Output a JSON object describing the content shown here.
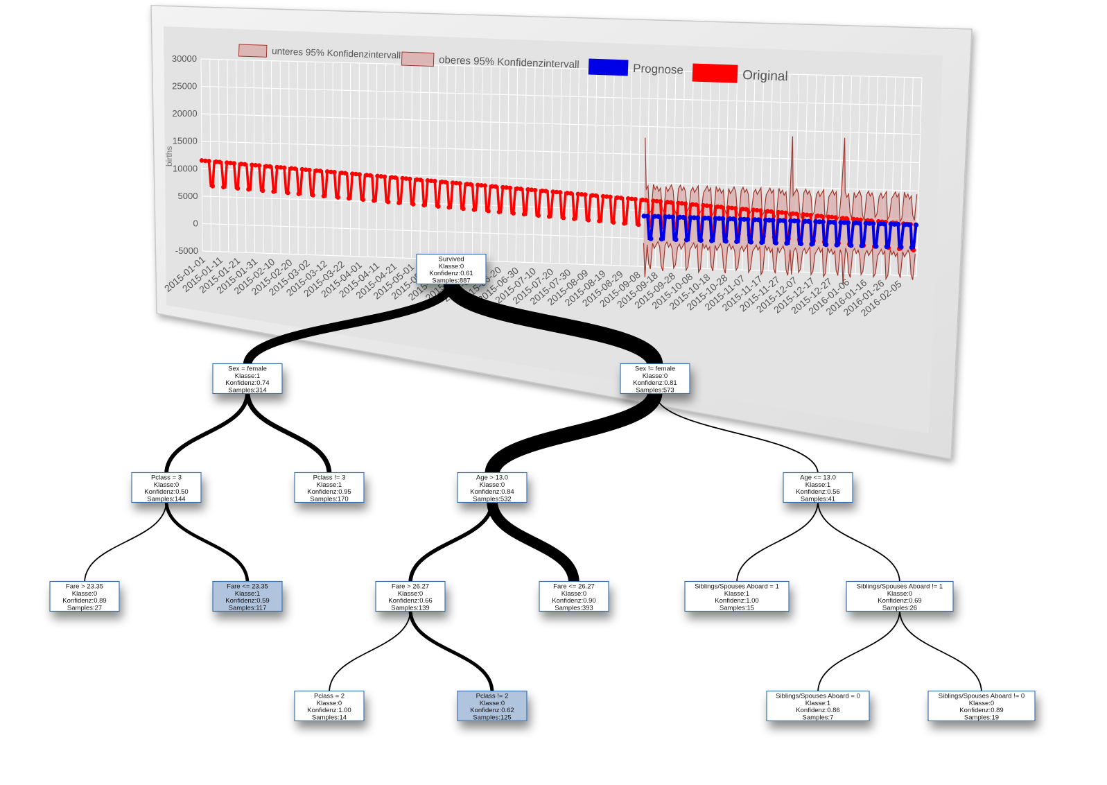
{
  "colors": {
    "original": "#ff0000",
    "forecast": "#0000e6",
    "interval_fill": "#d9a6a6",
    "interval_stroke": "#a0362c",
    "node_fill": "#ffffff",
    "node_highlight": "#b0c4de",
    "node_border": "#3b73b0",
    "edge": "#000000"
  },
  "chart_data": {
    "type": "line",
    "ylabel": "births",
    "xlabel": "",
    "ylim": [
      -5000,
      30000
    ],
    "y_ticks": [
      "30000",
      "25000",
      "20000",
      "15000",
      "10000",
      "5000",
      "0",
      "-5000"
    ],
    "x_ticks": [
      "2015-01-01",
      "2015-01-11",
      "2015-01-21",
      "2015-01-31",
      "2015-02-10",
      "2015-02-20",
      "2015-03-02",
      "2015-03-12",
      "2015-03-22",
      "2015-04-01",
      "2015-04-11",
      "2015-04-21",
      "2015-05-01",
      "2015-05-11",
      "2015-05-21",
      "2015-05-31",
      "2015-06-10",
      "2015-06-20",
      "2015-06-30",
      "2015-07-10",
      "2015-07-20",
      "2015-07-30",
      "2015-08-09",
      "2015-08-19",
      "2015-08-29",
      "2015-09-08",
      "2015-09-18",
      "2015-09-28",
      "2015-10-08",
      "2015-10-18",
      "2015-10-28",
      "2015-11-07",
      "2015-11-17",
      "2015-11-27",
      "2015-12-07",
      "2015-12-17",
      "2015-12-27",
      "2016-01-06",
      "2016-01-16",
      "2016-01-26",
      "2016-02-05"
    ],
    "grid": true,
    "legend_position": "top",
    "series": [
      {
        "name": "unteres 95% Konfidenzintervall",
        "style": "area"
      },
      {
        "name": "oberes 95% Konfidenzintervall",
        "style": "area"
      },
      {
        "name": "Prognose",
        "style": "line-markers",
        "weekday_level": 4000,
        "weekend_level": 0
      },
      {
        "name": "Original",
        "style": "line-markers",
        "start_weekday_level": 11500,
        "end_weekday_level": 4000,
        "weekend_drop": 4500
      }
    ],
    "forecast_start": "2015-09-05",
    "interval_spikes": [
      {
        "date": "2015-09-05",
        "value": 18000
      },
      {
        "date": "2015-11-26",
        "value": 19000
      },
      {
        "date": "2015-12-25",
        "value": 19000
      }
    ]
  },
  "tree": {
    "nodes": [
      {
        "id": "n0",
        "lines": [
          "Survived",
          "Klasse:0",
          "Konfidenz:0.61",
          "Samples:887"
        ],
        "highlight": false
      },
      {
        "id": "n1",
        "lines": [
          "Sex = female",
          "Klasse:1",
          "Konfidenz:0.74",
          "Samples:314"
        ],
        "highlight": false
      },
      {
        "id": "n2",
        "lines": [
          "Sex != female",
          "Klasse:0",
          "Konfidenz:0.81",
          "Samples:573"
        ],
        "highlight": false
      },
      {
        "id": "n3",
        "lines": [
          "Pclass = 3",
          "Klasse:0",
          "Konfidenz:0.50",
          "Samples:144"
        ],
        "highlight": false
      },
      {
        "id": "n4",
        "lines": [
          "Pclass != 3",
          "Klasse:1",
          "Konfidenz:0.95",
          "Samples:170"
        ],
        "highlight": false
      },
      {
        "id": "n5",
        "lines": [
          "Age > 13.0",
          "Klasse:0",
          "Konfidenz:0.84",
          "Samples:532"
        ],
        "highlight": false
      },
      {
        "id": "n6",
        "lines": [
          "Age <= 13.0",
          "Klasse:1",
          "Konfidenz:0.56",
          "Samples:41"
        ],
        "highlight": false
      },
      {
        "id": "n7",
        "lines": [
          "Fare > 23.35",
          "Klasse:0",
          "Konfidenz:0.89",
          "Samples:27"
        ],
        "highlight": false
      },
      {
        "id": "n8",
        "lines": [
          "Fare <= 23.35",
          "Klasse:1",
          "Konfidenz:0.59",
          "Samples:117"
        ],
        "highlight": true
      },
      {
        "id": "n9",
        "lines": [
          "Fare > 26.27",
          "Klasse:0",
          "Konfidenz:0.66",
          "Samples:139"
        ],
        "highlight": false
      },
      {
        "id": "n10",
        "lines": [
          "Fare <= 26.27",
          "Klasse:0",
          "Konfidenz:0.90",
          "Samples:393"
        ],
        "highlight": false
      },
      {
        "id": "n11",
        "lines": [
          "Siblings/Spouses Aboard = 1",
          "Klasse:1",
          "Konfidenz:1.00",
          "Samples:15"
        ],
        "highlight": false
      },
      {
        "id": "n12",
        "lines": [
          "Siblings/Spouses Aboard != 1",
          "Klasse:0",
          "Konfidenz:0.69",
          "Samples:26"
        ],
        "highlight": false
      },
      {
        "id": "n13",
        "lines": [
          "Pclass = 2",
          "Klasse:0",
          "Konfidenz:1.00",
          "Samples:14"
        ],
        "highlight": false
      },
      {
        "id": "n14",
        "lines": [
          "Pclass != 2",
          "Klasse:0",
          "Konfidenz:0.62",
          "Samples:125"
        ],
        "highlight": true
      },
      {
        "id": "n15",
        "lines": [
          "Siblings/Spouses Aboard = 0",
          "Klasse:1",
          "Konfidenz:0.86",
          "Samples:7"
        ],
        "highlight": false
      },
      {
        "id": "n16",
        "lines": [
          "Siblings/Spouses Aboard != 0",
          "Klasse:0",
          "Konfidenz:0.89",
          "Samples:19"
        ],
        "highlight": false
      }
    ],
    "edges": [
      [
        "n0",
        "n1"
      ],
      [
        "n0",
        "n2"
      ],
      [
        "n1",
        "n3"
      ],
      [
        "n1",
        "n4"
      ],
      [
        "n2",
        "n5"
      ],
      [
        "n2",
        "n6"
      ],
      [
        "n3",
        "n7"
      ],
      [
        "n3",
        "n8"
      ],
      [
        "n5",
        "n9"
      ],
      [
        "n5",
        "n10"
      ],
      [
        "n6",
        "n11"
      ],
      [
        "n6",
        "n12"
      ],
      [
        "n9",
        "n13"
      ],
      [
        "n9",
        "n14"
      ],
      [
        "n12",
        "n15"
      ],
      [
        "n12",
        "n16"
      ]
    ]
  }
}
